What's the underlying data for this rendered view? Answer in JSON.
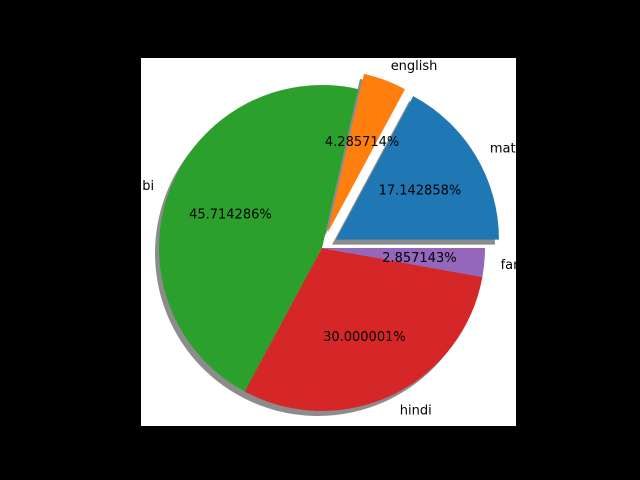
{
  "chart_data": {
    "type": "pie",
    "categories": [
      "maths",
      "english",
      "urdu / punjabi (partially visible)",
      "hindi",
      "farsi (partially visible)"
    ],
    "values": [
      17.142858,
      4.285714,
      45.714286,
      30.000001,
      2.857143
    ],
    "labels": [
      "maths",
      "english",
      "bi",
      "hindi",
      "far"
    ],
    "percent_labels": [
      "17.142858%",
      "4.285714%",
      "45.714286%",
      "30.000001%",
      "2.857143%"
    ],
    "explode": [
      0.1,
      0.1,
      0,
      0,
      0
    ],
    "shadow": true,
    "start_angle_deg": 0,
    "colors": [
      "#1f77b4",
      "#ff7f0e",
      "#2ca02c",
      "#d62728",
      "#9467bd"
    ],
    "background_color": "#000000",
    "axes_background_color": "#ffffff"
  }
}
